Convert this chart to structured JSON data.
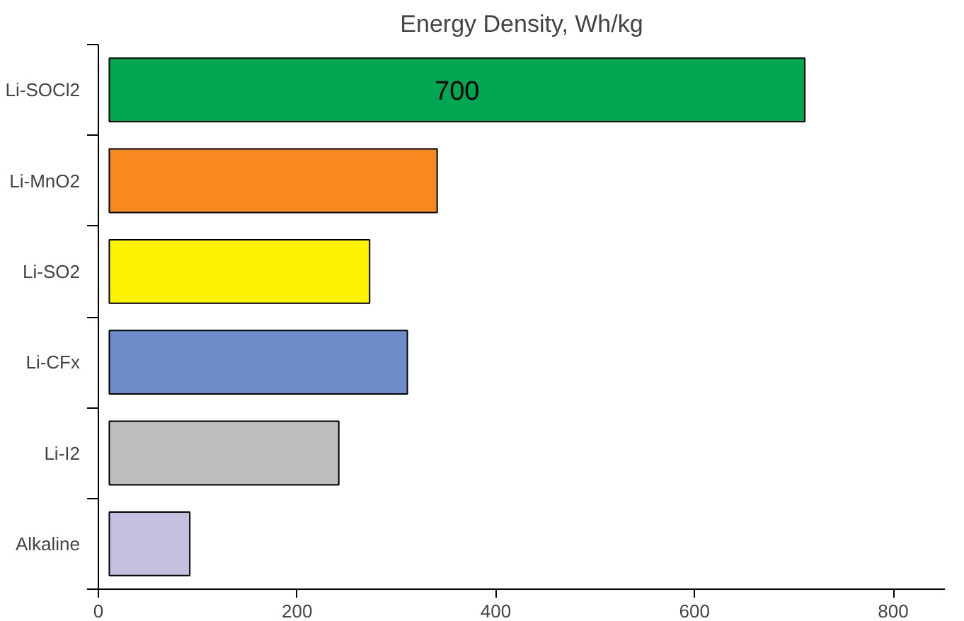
{
  "chart_data": {
    "type": "bar",
    "orientation": "horizontal",
    "title": "Energy Density, Wh/kg",
    "categories": [
      "Li-SOCl2",
      "Li-MnO2",
      "Li-SO2",
      "Li-CFx",
      "Li-I2",
      "Alkaline"
    ],
    "values": [
      700,
      330,
      262,
      300,
      231,
      81
    ],
    "base": [
      11,
      11,
      11,
      11,
      11,
      11
    ],
    "colors": [
      "#00a651",
      "#f7891f",
      "#fff200",
      "#6d8dc9",
      "#bcbec0",
      "#c5c0e0"
    ],
    "value_labels": [
      "700",
      null,
      null,
      null,
      null,
      null
    ],
    "xlim": [
      0,
      852
    ],
    "xticks": [
      0,
      200,
      400,
      600,
      800
    ],
    "grid": false
  }
}
